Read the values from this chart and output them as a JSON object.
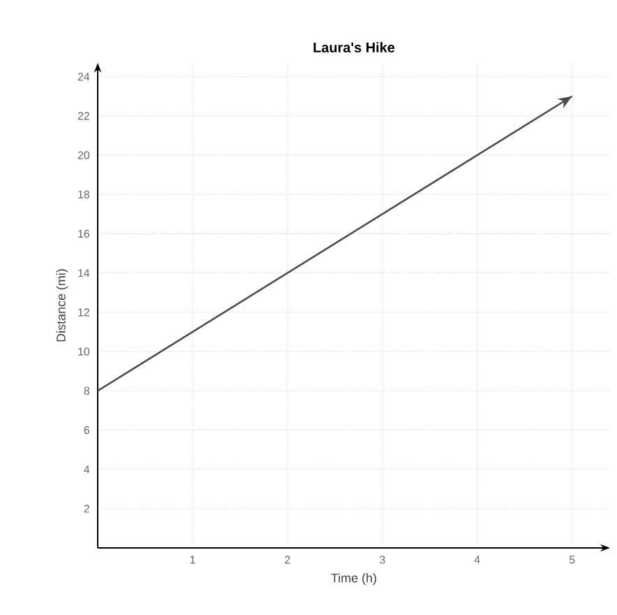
{
  "chart_data": {
    "type": "line",
    "title": "Laura's Hike",
    "xlabel": "Time (h)",
    "ylabel": "Distance (mi)",
    "x": [
      0,
      5
    ],
    "values": [
      8,
      23
    ],
    "color": "#4a4a4a",
    "xlim": [
      0,
      5.4
    ],
    "ylim": [
      0,
      24.7
    ],
    "xticks": [
      1,
      2,
      3,
      4,
      5
    ],
    "yticks": [
      2,
      4,
      6,
      8,
      10,
      12,
      14,
      16,
      18,
      20,
      22,
      24
    ],
    "grid": true,
    "marker": "none",
    "line_style": "solid"
  }
}
